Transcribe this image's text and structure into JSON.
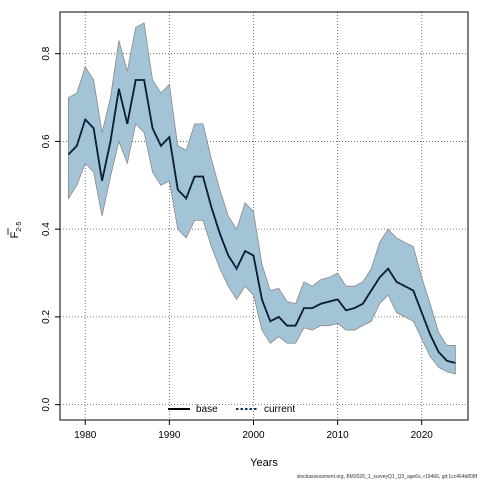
{
  "chart_data": {
    "type": "line",
    "title": "",
    "xlabel": "Years",
    "ylabel": "F",
    "ylabel_sub": "2-5",
    "xlim": [
      1977,
      2025.5
    ],
    "ylim": [
      -0.035,
      0.895
    ],
    "xticks": [
      "1980",
      "1990",
      "2000",
      "2010",
      "2020"
    ],
    "yticks": [
      "0.0",
      "0.2",
      "0.4",
      "0.6",
      "0.8"
    ],
    "grid": true,
    "legend_position": "bottom-center",
    "legend": {
      "base": "base",
      "current": "current"
    },
    "colors": {
      "band": "#a3c3d6",
      "band_edge": "#8a8a8a",
      "current": "#0b3557",
      "base": "#000000"
    },
    "footer": "stockassessment.org, BM2026_1_surveyQ1_Q3_age6s, r19466, git:1cc464b808f",
    "series": [
      {
        "name": "current",
        "x": [
          1978,
          1979,
          1980,
          1981,
          1982,
          1983,
          1984,
          1985,
          1986,
          1987,
          1988,
          1989,
          1990,
          1991,
          1992,
          1993,
          1994,
          1995,
          1996,
          1997,
          1998,
          1999,
          2000,
          2001,
          2002,
          2003,
          2004,
          2005,
          2006,
          2007,
          2008,
          2009,
          2010,
          2011,
          2012,
          2013,
          2014,
          2015,
          2016,
          2017,
          2018,
          2019,
          2020,
          2021,
          2022,
          2023,
          2024
        ],
        "values": [
          0.57,
          0.59,
          0.65,
          0.63,
          0.51,
          0.6,
          0.72,
          0.64,
          0.74,
          0.74,
          0.63,
          0.59,
          0.61,
          0.49,
          0.47,
          0.52,
          0.52,
          0.45,
          0.39,
          0.34,
          0.31,
          0.35,
          0.34,
          0.24,
          0.19,
          0.2,
          0.18,
          0.18,
          0.22,
          0.22,
          0.23,
          0.235,
          0.24,
          0.215,
          0.22,
          0.23,
          0.26,
          0.29,
          0.31,
          0.28,
          0.27,
          0.26,
          0.21,
          0.16,
          0.12,
          0.1,
          0.095
        ],
        "lower": [
          0.47,
          0.5,
          0.55,
          0.53,
          0.43,
          0.52,
          0.6,
          0.55,
          0.64,
          0.62,
          0.53,
          0.5,
          0.51,
          0.4,
          0.38,
          0.42,
          0.42,
          0.36,
          0.31,
          0.27,
          0.24,
          0.27,
          0.25,
          0.17,
          0.14,
          0.155,
          0.14,
          0.14,
          0.175,
          0.17,
          0.18,
          0.18,
          0.185,
          0.17,
          0.17,
          0.18,
          0.19,
          0.23,
          0.25,
          0.21,
          0.2,
          0.19,
          0.15,
          0.11,
          0.085,
          0.075,
          0.07
        ],
        "upper": [
          0.7,
          0.71,
          0.77,
          0.74,
          0.62,
          0.7,
          0.83,
          0.76,
          0.86,
          0.87,
          0.74,
          0.71,
          0.73,
          0.59,
          0.58,
          0.64,
          0.64,
          0.56,
          0.49,
          0.43,
          0.4,
          0.46,
          0.44,
          0.32,
          0.26,
          0.265,
          0.235,
          0.23,
          0.28,
          0.27,
          0.285,
          0.29,
          0.3,
          0.27,
          0.27,
          0.28,
          0.31,
          0.37,
          0.4,
          0.38,
          0.37,
          0.36,
          0.29,
          0.23,
          0.165,
          0.135,
          0.135
        ]
      }
    ]
  }
}
